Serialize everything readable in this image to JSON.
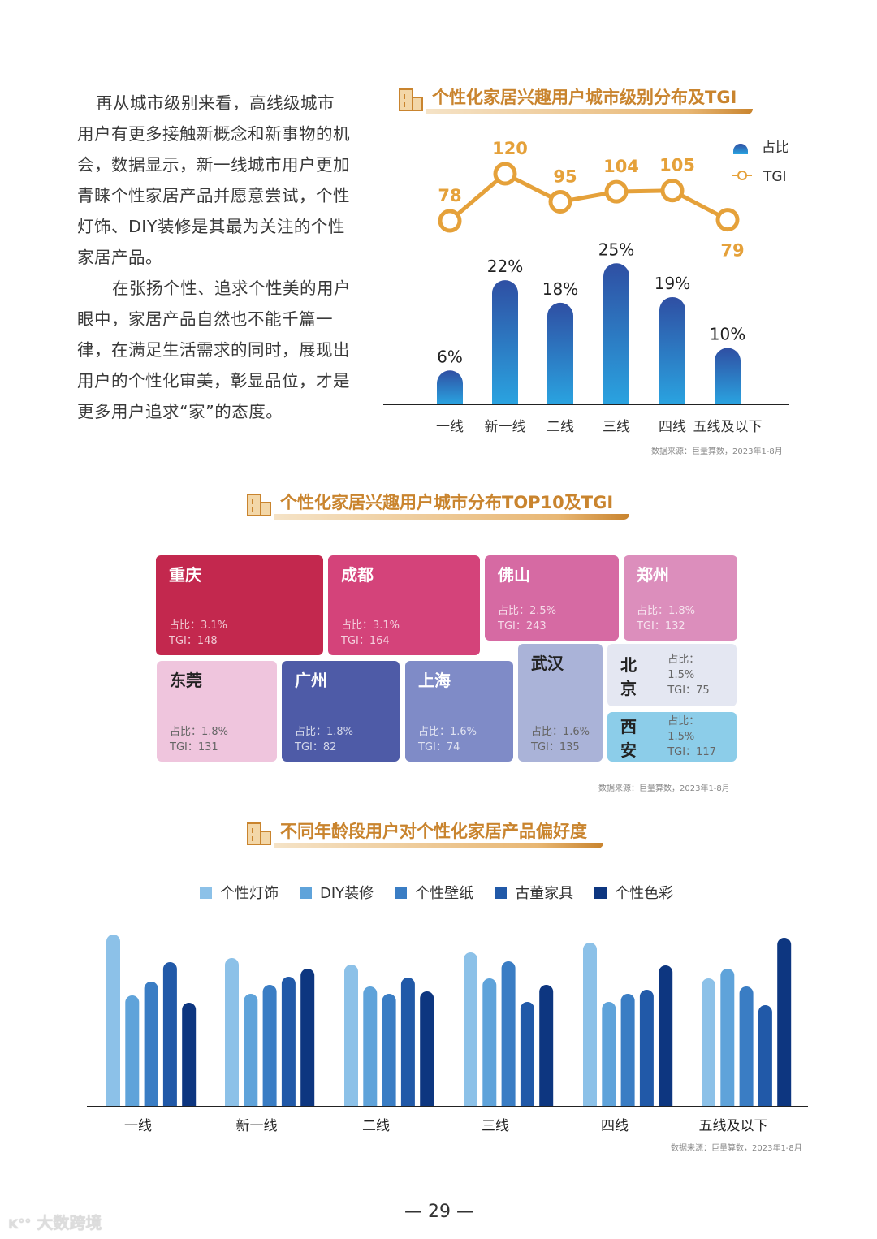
{
  "intro": {
    "paragraph1": [
      "再从城市级别来看，高线级城市",
      "用户有更多接触新概念和新事物的机",
      "会，数据显示，新一线城市用户更加",
      "青睐个性家居产品并愿意尝试，个性",
      "灯饰、DIY装修是其最为关注的个性",
      "家居产品。"
    ],
    "paragraph2": [
      "在张扬个性、追求个性美的用户",
      "眼中，家居产品自然也不能千篇一",
      "律，在满足生活需求的同时，展现出",
      "用户的个性化审美，彰显品位，才是",
      "更多用户追求“家”的态度。"
    ]
  },
  "colors": {
    "title": "#c9842e",
    "tgi": "#e5a13a",
    "bar_top": "#2f4fa3",
    "bar_bottom": "#2aa3e0"
  },
  "chart_data": [
    {
      "type": "bar+line",
      "title": "个性化家居兴趣用户城市级别分布及TGI",
      "categories": [
        "一线",
        "新一线",
        "二线",
        "三线",
        "四线",
        "五线及以下"
      ],
      "series": [
        {
          "name": "占比",
          "type": "bar",
          "values": [
            6,
            22,
            18,
            25,
            19,
            10
          ],
          "labels": [
            "6%",
            "22%",
            "18%",
            "25%",
            "19%",
            "10%"
          ]
        },
        {
          "name": "TGI",
          "type": "line",
          "values": [
            78,
            120,
            95,
            104,
            105,
            79
          ],
          "labels": [
            "78",
            "120",
            "95",
            "104",
            "105",
            "79"
          ]
        }
      ],
      "legend": "top-right",
      "grid": false,
      "source": "数据来源：巨量算数，2023年1-8月"
    },
    {
      "type": "treemap",
      "title": "个性化家居兴趣用户城市分布TOP10及TGI",
      "items": [
        {
          "city": "重庆",
          "share": "占比：3.1%",
          "tgi": "TGI：148",
          "color": "#c3284e"
        },
        {
          "city": "成都",
          "share": "占比：3.1%",
          "tgi": "TGI：164",
          "color": "#d4437a"
        },
        {
          "city": "佛山",
          "share": "占比：2.5%",
          "tgi": "TGI：243",
          "color": "#d66aa3"
        },
        {
          "city": "郑州",
          "share": "占比：1.8%",
          "tgi": "TGI：132",
          "color": "#dc8ebc"
        },
        {
          "city": "东莞",
          "share": "占比：1.8%",
          "tgi": "TGI：131",
          "color": "#efc5dd"
        },
        {
          "city": "广州",
          "share": "占比：1.8%",
          "tgi": "TGI：82",
          "color": "#4e5ba7"
        },
        {
          "city": "上海",
          "share": "占比：1.6%",
          "tgi": "TGI：74",
          "color": "#7f8bc7"
        },
        {
          "city": "武汉",
          "share": "占比：1.6%",
          "tgi": "TGI：135",
          "color": "#aab3d8"
        },
        {
          "city": "北京",
          "share": "占比：1.5%",
          "tgi": "TGI：75",
          "color": "#e4e7f2"
        },
        {
          "city": "西安",
          "share": "占比：1.5%",
          "tgi": "TGI：117",
          "color": "#8ccde9"
        }
      ],
      "source": "数据来源：巨量算数，2023年1-8月"
    },
    {
      "type": "bar",
      "title": "不同年龄段用户对个性化家居产品偏好度",
      "categories": [
        "一线",
        "新一线",
        "二线",
        "三线",
        "四线",
        "五线及以下"
      ],
      "series": [
        {
          "name": "个性灯饰",
          "color": "#8cc1e8",
          "values": [
            212,
            183,
            175,
            190,
            202,
            158
          ]
        },
        {
          "name": "DIY装修",
          "color": "#5fa3da",
          "values": [
            137,
            139,
            148,
            158,
            129,
            170
          ]
        },
        {
          "name": "个性壁纸",
          "color": "#3a7dc4",
          "values": [
            154,
            150,
            139,
            179,
            139,
            148
          ]
        },
        {
          "name": "古董家具",
          "color": "#2159a8",
          "values": [
            178,
            160,
            159,
            129,
            144,
            125
          ]
        },
        {
          "name": "个性色彩",
          "color": "#0d3680",
          "values": [
            128,
            170,
            142,
            150,
            174,
            208
          ]
        }
      ],
      "legend": "top",
      "grid": false,
      "source": "数据来源：巨量算数，2023年1-8月"
    }
  ],
  "footer": {
    "page_number": "— 29 —",
    "watermark": "大数跨境"
  }
}
